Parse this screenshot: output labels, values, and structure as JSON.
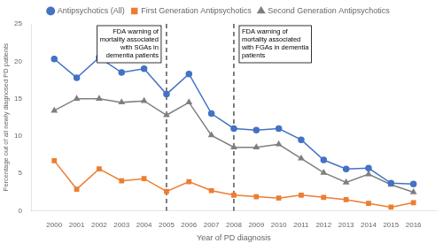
{
  "chart_data": {
    "type": "line",
    "x": [
      2000,
      2001,
      2002,
      2003,
      2004,
      2005,
      2006,
      2007,
      2008,
      2009,
      2010,
      2011,
      2012,
      2013,
      2014,
      2015,
      2016
    ],
    "series": [
      {
        "name": "Antipsychotics (All)",
        "color": "#4472C4",
        "marker": "circle",
        "values": [
          20.3,
          17.8,
          20.5,
          18.5,
          19.0,
          15.6,
          18.3,
          13.0,
          11.0,
          10.8,
          11.0,
          9.5,
          6.8,
          5.6,
          5.7,
          3.7,
          3.6
        ]
      },
      {
        "name": "First Generation Antipsychotics",
        "color": "#ED7D31",
        "marker": "square",
        "values": [
          6.7,
          2.9,
          5.6,
          4.0,
          4.3,
          2.6,
          3.9,
          2.7,
          2.1,
          1.9,
          1.7,
          2.1,
          1.8,
          1.5,
          1.0,
          0.5,
          1.1
        ]
      },
      {
        "name": "Second Generation Antipsychotics",
        "color": "#7F7F7F",
        "marker": "triangle",
        "values": [
          13.4,
          15.0,
          15.0,
          14.5,
          14.7,
          12.8,
          14.5,
          10.1,
          8.5,
          8.5,
          8.9,
          7.0,
          5.1,
          3.8,
          4.9,
          3.5,
          2.5
        ]
      }
    ],
    "vlines": [
      2005,
      2008
    ],
    "annotations": [
      "FDA warning of\nmortality associated\nwith SGAs in\ndementia patients",
      "FDA warning of\nmortality associated\nwith FGAs in dementia\npatients"
    ],
    "xlabel": "Year of PD diagnosis",
    "ylabel": "Percentage out of all newly diagnosed PD patients",
    "xlim": [
      1999,
      2017
    ],
    "xticks": [
      2000,
      2001,
      2002,
      2003,
      2004,
      2005,
      2006,
      2007,
      2008,
      2009,
      2010,
      2011,
      2012,
      2013,
      2014,
      2015,
      2016
    ],
    "ylim": [
      0,
      25
    ],
    "yticks": [
      0,
      5,
      10,
      15,
      20,
      25
    ],
    "grid": false,
    "legend": "top"
  }
}
